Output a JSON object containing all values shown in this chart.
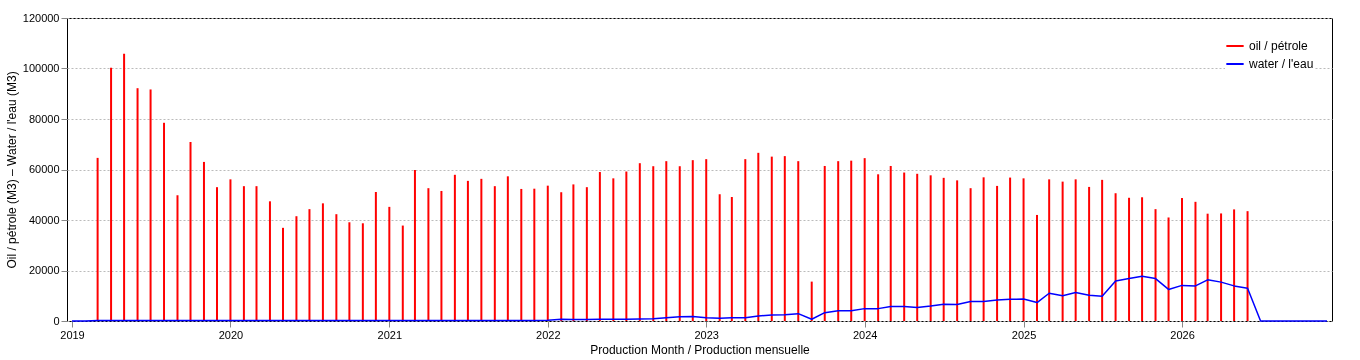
{
  "chart_data": {
    "type": "bar",
    "xlabel": "Production Month / Production mensuelle",
    "ylabel": "Oil / pétrole (M3)  –  Water / l'eau (M3)",
    "xlim": [
      "2019-01",
      "2026-12"
    ],
    "xticks": [
      "2019",
      "2020",
      "2021",
      "2022",
      "2023",
      "2024",
      "2025",
      "2026"
    ],
    "ylim": [
      0,
      120000
    ],
    "yticks": [
      0,
      20000,
      40000,
      60000,
      80000,
      100000,
      120000
    ],
    "grid": "y",
    "legend": "top right",
    "series": [
      {
        "name": "oil / pétrole",
        "color": "#ff0000",
        "x": [
          "2019-03",
          "2019-04",
          "2019-05",
          "2019-06",
          "2019-07",
          "2019-08",
          "2019-09",
          "2019-10",
          "2019-11",
          "2019-12",
          "2020-01",
          "2020-02",
          "2020-03",
          "2020-04",
          "2020-05",
          "2020-06",
          "2020-07",
          "2020-08",
          "2020-09",
          "2020-10",
          "2020-11",
          "2020-12",
          "2021-01",
          "2021-02",
          "2021-03",
          "2021-04",
          "2021-05",
          "2021-06",
          "2021-07",
          "2021-08",
          "2021-09",
          "2021-10",
          "2021-11",
          "2021-12",
          "2022-01",
          "2022-02",
          "2022-03",
          "2022-04",
          "2022-05",
          "2022-06",
          "2022-07",
          "2022-08",
          "2022-09",
          "2022-10",
          "2022-11",
          "2022-12",
          "2023-01",
          "2023-02",
          "2023-03",
          "2023-04",
          "2023-05",
          "2023-06",
          "2023-07",
          "2023-08",
          "2023-09",
          "2023-10",
          "2023-11",
          "2023-12",
          "2024-01",
          "2024-02",
          "2024-03",
          "2024-04",
          "2024-05",
          "2024-06",
          "2024-07",
          "2024-08",
          "2024-09",
          "2024-10",
          "2024-11",
          "2024-12",
          "2025-01",
          "2025-02",
          "2025-03",
          "2025-04",
          "2025-05",
          "2025-06",
          "2025-07",
          "2025-08",
          "2025-09",
          "2025-10",
          "2025-11",
          "2025-12",
          "2026-01",
          "2026-02",
          "2026-03",
          "2026-04",
          "2026-05",
          "2026-06"
        ],
        "values": [
          64600,
          100300,
          105800,
          92200,
          91700,
          78500,
          49800,
          70900,
          63000,
          53000,
          56100,
          53400,
          53400,
          47400,
          36900,
          41500,
          44300,
          46600,
          42300,
          39100,
          38700,
          51100,
          45200,
          37800,
          59800,
          52600,
          51500,
          57900,
          55500,
          56300,
          53400,
          57300,
          52300,
          52400,
          53600,
          51000,
          54100,
          53000,
          59000,
          56500,
          59200,
          62500,
          61300,
          63300,
          61300,
          63700,
          64100,
          50200,
          49100,
          64100,
          66600,
          65100,
          65300,
          63300,
          15600,
          61400,
          63300,
          63500,
          64500,
          58100,
          61400,
          58800,
          58300,
          57700,
          56700,
          55700,
          52600,
          56900,
          53500,
          56800,
          56500,
          42000,
          56100,
          55200,
          56100,
          53100,
          55900,
          50600,
          48800,
          49000,
          44300,
          41000,
          48700,
          47200,
          42500,
          42600,
          44200,
          43500
        ]
      },
      {
        "name": "water / l'eau",
        "type": "line",
        "color": "#0000ff",
        "x": [
          "2019-01",
          "2019-02",
          "2019-03",
          "2019-04",
          "2019-05",
          "2019-06",
          "2019-07",
          "2019-08",
          "2019-09",
          "2019-10",
          "2019-11",
          "2019-12",
          "2020-01",
          "2020-02",
          "2020-03",
          "2020-04",
          "2020-05",
          "2020-06",
          "2020-07",
          "2020-08",
          "2020-09",
          "2020-10",
          "2020-11",
          "2020-12",
          "2021-01",
          "2021-02",
          "2021-03",
          "2021-04",
          "2021-05",
          "2021-06",
          "2021-07",
          "2021-08",
          "2021-09",
          "2021-10",
          "2021-11",
          "2021-12",
          "2022-01",
          "2022-02",
          "2022-03",
          "2022-04",
          "2022-05",
          "2022-06",
          "2022-07",
          "2022-08",
          "2022-09",
          "2022-10",
          "2022-11",
          "2022-12",
          "2023-01",
          "2023-02",
          "2023-03",
          "2023-04",
          "2023-05",
          "2023-06",
          "2023-07",
          "2023-08",
          "2023-09",
          "2023-10",
          "2023-11",
          "2023-12",
          "2024-01",
          "2024-02",
          "2024-03",
          "2024-04",
          "2024-05",
          "2024-06",
          "2024-07",
          "2024-08",
          "2024-09",
          "2024-10",
          "2024-11",
          "2024-12",
          "2025-01",
          "2025-02",
          "2025-03",
          "2025-04",
          "2025-05",
          "2025-06",
          "2025-07",
          "2025-08",
          "2025-09",
          "2025-10",
          "2025-11",
          "2025-12",
          "2026-01",
          "2026-02",
          "2026-03",
          "2026-04",
          "2026-05",
          "2026-06",
          "2026-07",
          "2026-08",
          "2026-09",
          "2026-10",
          "2026-11",
          "2026-12"
        ],
        "values": [
          0,
          0,
          200,
          200,
          200,
          200,
          200,
          200,
          200,
          200,
          200,
          200,
          200,
          200,
          200,
          200,
          200,
          200,
          200,
          200,
          200,
          200,
          200,
          200,
          200,
          200,
          200,
          200,
          200,
          200,
          200,
          200,
          200,
          200,
          200,
          200,
          300,
          700,
          600,
          600,
          700,
          700,
          700,
          800,
          900,
          1300,
          1700,
          1800,
          1300,
          1100,
          1300,
          1300,
          2000,
          2400,
          2500,
          2900,
          700,
          3300,
          4100,
          4100,
          4900,
          4900,
          5700,
          5700,
          5300,
          5900,
          6600,
          6500,
          7700,
          7700,
          8300,
          8600,
          8700,
          7300,
          11000,
          10000,
          11300,
          10200,
          9800,
          15800,
          16800,
          17700,
          16800,
          12500,
          14100,
          13900,
          16300,
          15400,
          13900,
          13000,
          0,
          0,
          0,
          0,
          0,
          0
        ]
      }
    ]
  }
}
